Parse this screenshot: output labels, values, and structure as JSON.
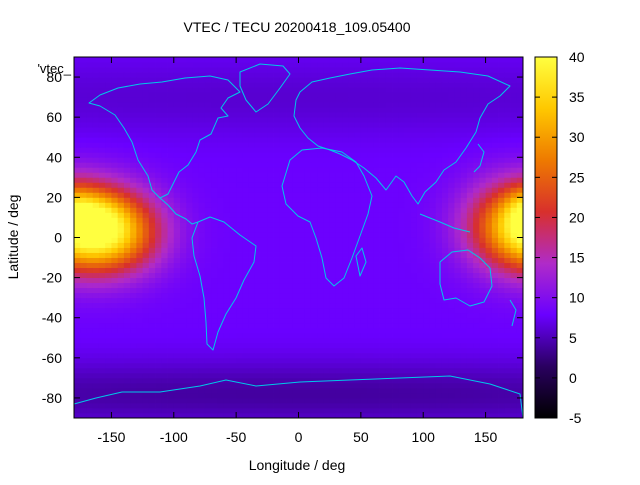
{
  "chart_data": {
    "type": "heatmap",
    "title": "VTEC / TECU 20200418_109.05400",
    "xlabel": "Longitude / deg",
    "ylabel": "Latitude / deg",
    "xlim": [
      -180,
      180
    ],
    "ylim": [
      -90,
      90
    ],
    "x_ticks": [
      -150,
      -100,
      -50,
      0,
      50,
      100,
      150
    ],
    "y_ticks": [
      -80,
      -60,
      -40,
      -20,
      0,
      20,
      40,
      60,
      80
    ],
    "legend_entry": "'vtec_",
    "colorbar": {
      "range": [
        -5,
        40
      ],
      "ticks": [
        -5,
        0,
        5,
        10,
        15,
        20,
        25,
        30,
        35,
        40
      ],
      "palette_stops": [
        "#000000",
        "#2a0060",
        "#6a00ff",
        "#b02bc8",
        "#d8302c",
        "#ee7a00",
        "#ffc800",
        "#ffff40"
      ]
    },
    "field": {
      "background_tecu": 8,
      "features": [
        {
          "lon": -150,
          "lat": 3,
          "sigma_lon": 28,
          "sigma_lat": 14,
          "peak_tecu": 24
        },
        {
          "lon": -165,
          "lat": 12,
          "sigma_lon": 15,
          "sigma_lat": 8,
          "peak_tecu": 4
        },
        {
          "lon": 175,
          "lat": 6,
          "sigma_lon": 28,
          "sigma_lat": 15,
          "peak_tecu": 22
        },
        {
          "lon": 180,
          "lat": 16,
          "sigma_lon": 10,
          "sigma_lat": 8,
          "peak_tecu": 4
        },
        {
          "lon": 0,
          "lat": -78,
          "sigma_lon": 400,
          "sigma_lat": 12,
          "peak_tecu": -4
        },
        {
          "lon": 0,
          "lat": 70,
          "sigma_lon": 400,
          "sigma_lat": 14,
          "peak_tecu": -2
        }
      ]
    }
  }
}
